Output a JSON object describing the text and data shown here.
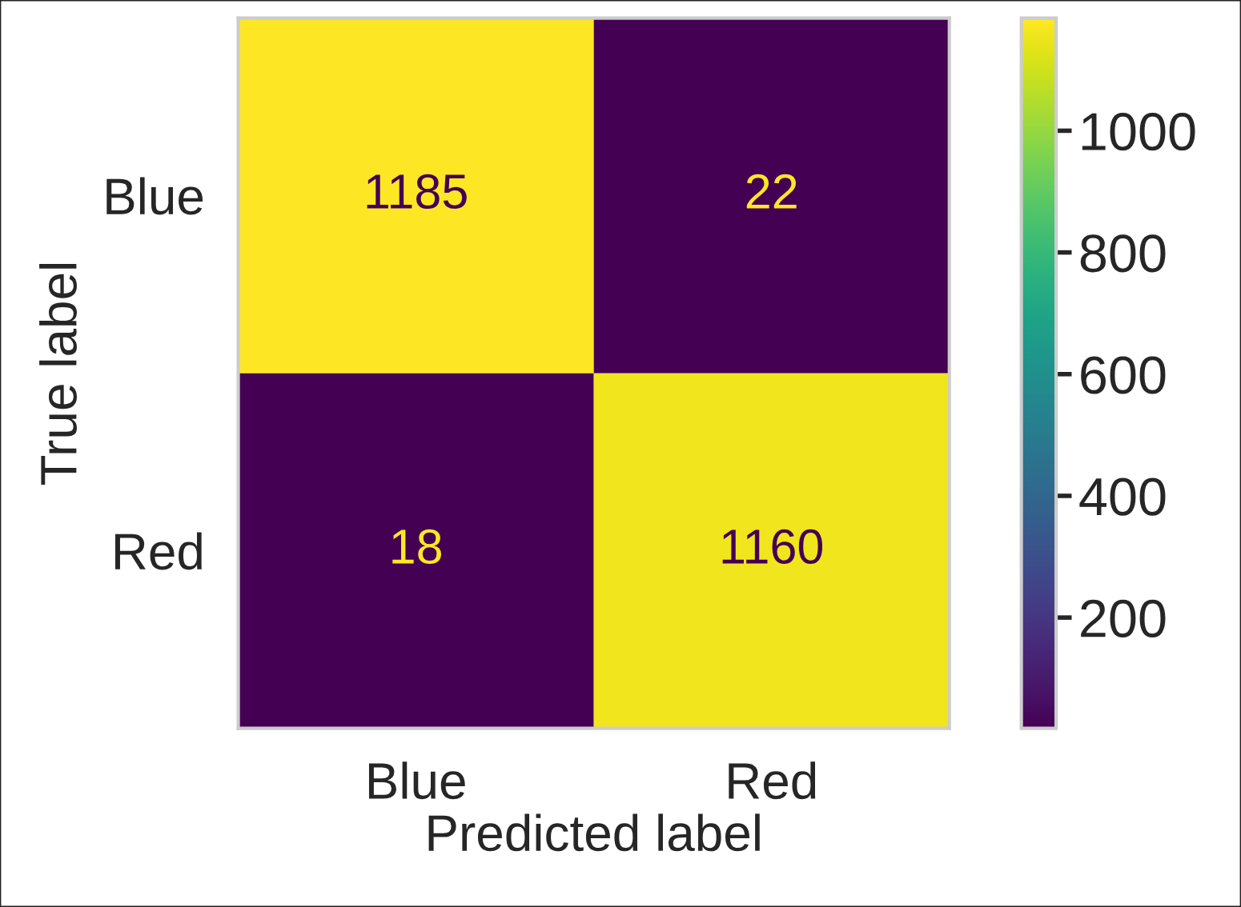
{
  "chart_data": {
    "type": "heatmap",
    "xlabel": "Predicted label",
    "ylabel": "True label",
    "categories": [
      "Blue",
      "Red"
    ],
    "y_categories": [
      "Blue",
      "Red"
    ],
    "cells": [
      [
        1185,
        22
      ],
      [
        18,
        1160
      ]
    ],
    "clim": [
      18,
      1185
    ],
    "cticks": [
      200,
      400,
      600,
      800,
      1000
    ],
    "data_labels": true,
    "grid": false
  }
}
